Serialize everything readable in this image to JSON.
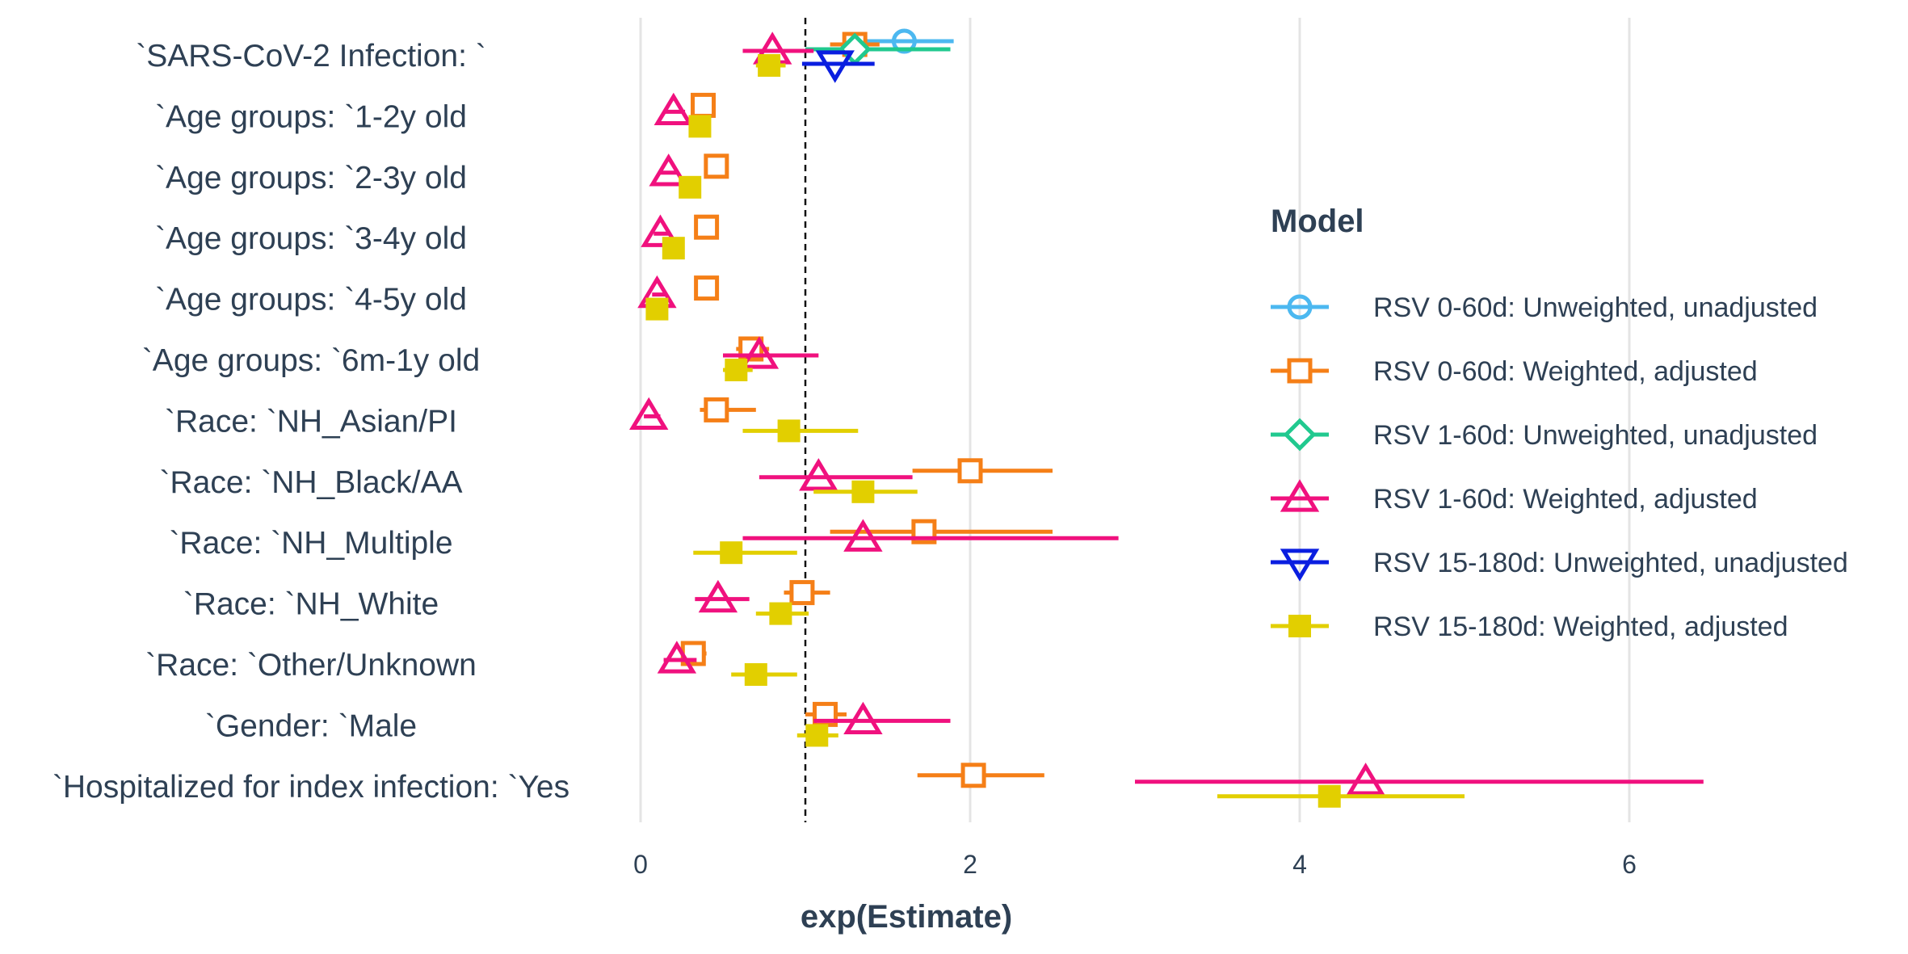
{
  "chart_data": {
    "type": "scatter",
    "title": "",
    "xlabel": "exp(Estimate)",
    "ylabel": "",
    "xlim": [
      -0.2,
      6.6
    ],
    "x_ticks": [
      0,
      2,
      4,
      6
    ],
    "reference_line_x": 1,
    "grid": "vertical major",
    "legend": {
      "title": "Model",
      "position": "right",
      "entries": [
        {
          "label": "RSV 0-60d: Unweighted, unadjusted",
          "color": "#4CB8F0",
          "shape": "circle"
        },
        {
          "label": "RSV 0-60d: Weighted, adjusted",
          "color": "#F57F17",
          "shape": "square"
        },
        {
          "label": "RSV 1-60d: Unweighted, unadjusted",
          "color": "#21C98F",
          "shape": "diamond"
        },
        {
          "label": "RSV 1-60d: Weighted, adjusted",
          "color": "#F0117E",
          "shape": "triangle-up"
        },
        {
          "label": "RSV 15-180d: Unweighted, unadjusted",
          "color": "#0A1EE0",
          "shape": "triangle-down"
        },
        {
          "label": "RSV 15-180d: Weighted, adjusted",
          "color": "#E2CF00",
          "shape": "square-filled"
        }
      ]
    },
    "categories": [
      "`SARS-CoV-2 Infection: `",
      "`Age groups: `1-2y old",
      "`Age groups: `2-3y old",
      "`Age groups: `3-4y old",
      "`Age groups: `4-5y old",
      "`Age groups: `6m-1y old",
      "`Race: `NH_Asian/PI",
      "`Race: `NH_Black/AA",
      "`Race: `NH_Multiple",
      "`Race: `NH_White",
      "`Race: `Other/Unknown",
      "`Gender: `Male",
      "`Hospitalized for index infection: `Yes"
    ],
    "series": [
      {
        "name": "RSV 0-60d: Unweighted, unadjusted",
        "points": [
          {
            "row": 0,
            "est": 1.6,
            "lo": 1.35,
            "hi": 1.9
          }
        ]
      },
      {
        "name": "RSV 0-60d: Weighted, adjusted",
        "points": [
          {
            "row": 0,
            "est": 1.3,
            "lo": 1.15,
            "hi": 1.45
          },
          {
            "row": 1,
            "est": 0.38,
            "lo": 0.33,
            "hi": 0.44
          },
          {
            "row": 2,
            "est": 0.46,
            "lo": 0.4,
            "hi": 0.52
          },
          {
            "row": 3,
            "est": 0.4,
            "lo": 0.35,
            "hi": 0.46
          },
          {
            "row": 4,
            "est": 0.4,
            "lo": 0.35,
            "hi": 0.46
          },
          {
            "row": 5,
            "est": 0.67,
            "lo": 0.58,
            "hi": 0.78
          },
          {
            "row": 6,
            "est": 0.46,
            "lo": 0.36,
            "hi": 0.7
          },
          {
            "row": 7,
            "est": 2.0,
            "lo": 1.65,
            "hi": 2.5
          },
          {
            "row": 8,
            "est": 1.72,
            "lo": 1.15,
            "hi": 2.5
          },
          {
            "row": 9,
            "est": 0.98,
            "lo": 0.87,
            "hi": 1.15
          },
          {
            "row": 10,
            "est": 0.32,
            "lo": 0.26,
            "hi": 0.4
          },
          {
            "row": 11,
            "est": 1.12,
            "lo": 1.0,
            "hi": 1.25
          },
          {
            "row": 12,
            "est": 2.02,
            "lo": 1.68,
            "hi": 2.45
          }
        ]
      },
      {
        "name": "RSV 1-60d: Unweighted, unadjusted",
        "points": [
          {
            "row": 0,
            "est": 1.3,
            "lo": 1.0,
            "hi": 1.88
          }
        ]
      },
      {
        "name": "RSV 1-60d: Weighted, adjusted",
        "points": [
          {
            "row": 0,
            "est": 0.8,
            "lo": 0.62,
            "hi": 1.05
          },
          {
            "row": 1,
            "est": 0.2,
            "lo": 0.15,
            "hi": 0.27
          },
          {
            "row": 2,
            "est": 0.17,
            "lo": 0.12,
            "hi": 0.23
          },
          {
            "row": 3,
            "est": 0.12,
            "lo": 0.08,
            "hi": 0.17
          },
          {
            "row": 4,
            "est": 0.1,
            "lo": 0.07,
            "hi": 0.15
          },
          {
            "row": 5,
            "est": 0.72,
            "lo": 0.5,
            "hi": 1.08
          },
          {
            "row": 6,
            "est": 0.05,
            "lo": 0.02,
            "hi": 0.12
          },
          {
            "row": 7,
            "est": 1.08,
            "lo": 0.72,
            "hi": 1.65
          },
          {
            "row": 8,
            "est": 1.35,
            "lo": 0.62,
            "hi": 2.9
          },
          {
            "row": 9,
            "est": 0.47,
            "lo": 0.33,
            "hi": 0.66
          },
          {
            "row": 10,
            "est": 0.22,
            "lo": 0.14,
            "hi": 0.34
          },
          {
            "row": 11,
            "est": 1.35,
            "lo": 1.05,
            "hi": 1.88
          },
          {
            "row": 12,
            "est": 4.4,
            "lo": 3.0,
            "hi": 6.45
          }
        ]
      },
      {
        "name": "RSV 15-180d: Unweighted, unadjusted",
        "points": [
          {
            "row": 0,
            "est": 1.18,
            "lo": 0.98,
            "hi": 1.42
          }
        ]
      },
      {
        "name": "RSV 15-180d: Weighted, adjusted",
        "points": [
          {
            "row": 0,
            "est": 0.78,
            "lo": 0.7,
            "hi": 0.88
          },
          {
            "row": 1,
            "est": 0.36,
            "lo": 0.3,
            "hi": 0.42
          },
          {
            "row": 2,
            "est": 0.3,
            "lo": 0.25,
            "hi": 0.36
          },
          {
            "row": 3,
            "est": 0.2,
            "lo": 0.16,
            "hi": 0.25
          },
          {
            "row": 4,
            "est": 0.1,
            "lo": 0.07,
            "hi": 0.14
          },
          {
            "row": 5,
            "est": 0.58,
            "lo": 0.5,
            "hi": 0.68
          },
          {
            "row": 6,
            "est": 0.9,
            "lo": 0.62,
            "hi": 1.32
          },
          {
            "row": 7,
            "est": 1.35,
            "lo": 1.05,
            "hi": 1.68
          },
          {
            "row": 8,
            "est": 0.55,
            "lo": 0.32,
            "hi": 0.95
          },
          {
            "row": 9,
            "est": 0.85,
            "lo": 0.7,
            "hi": 1.02
          },
          {
            "row": 10,
            "est": 0.7,
            "lo": 0.55,
            "hi": 0.95
          },
          {
            "row": 11,
            "est": 1.07,
            "lo": 0.95,
            "hi": 1.2
          },
          {
            "row": 12,
            "est": 4.18,
            "lo": 3.5,
            "hi": 5.0
          }
        ]
      }
    ]
  }
}
